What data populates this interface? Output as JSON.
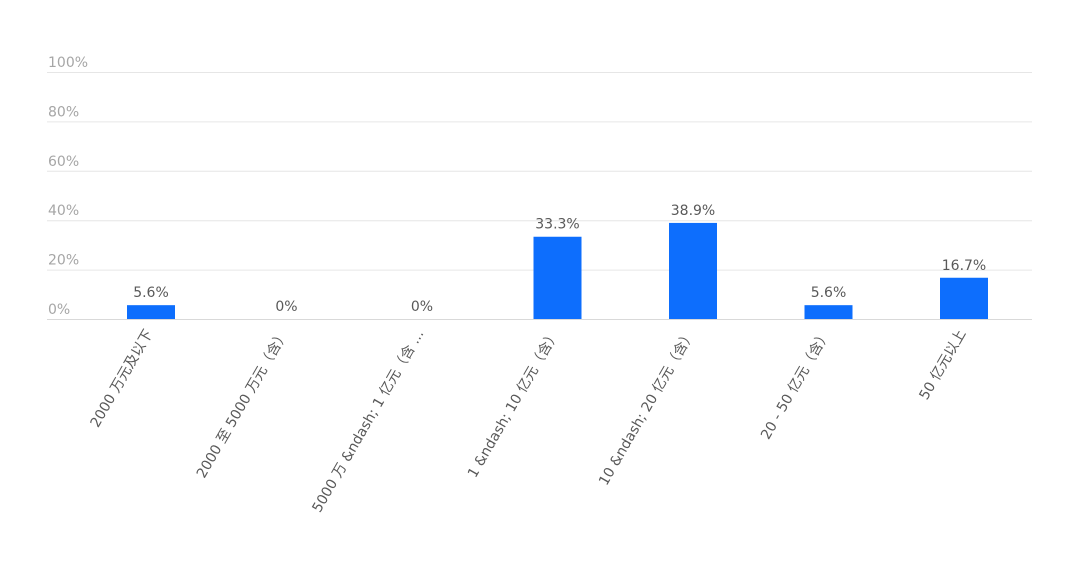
{
  "chart_data": {
    "type": "bar",
    "title": "",
    "xlabel": "",
    "ylabel": "",
    "ylim": [
      0,
      100
    ],
    "y_ticks": [
      "0%",
      "20%",
      "40%",
      "60%",
      "80%",
      "100%"
    ],
    "y_tick_values": [
      0,
      20,
      40,
      60,
      80,
      100
    ],
    "grid": true,
    "legend": "none",
    "bar_color": "#0d6efd",
    "categories": [
      "2000 万元及以下",
      "2000 至 5000 万元（含）",
      "5000 万 &ndash; 1 亿元（含 ...",
      "1 &ndash; 10 亿元（含）",
      "10 &ndash; 20 亿元（含）",
      "20 - 50 亿元（含）",
      "50 亿元以上"
    ],
    "values": [
      5.6,
      0,
      0,
      33.3,
      38.9,
      5.6,
      16.7
    ],
    "data_labels": [
      "5.6%",
      "0%",
      "0%",
      "33.3%",
      "38.9%",
      "5.6%",
      "16.7%"
    ]
  }
}
